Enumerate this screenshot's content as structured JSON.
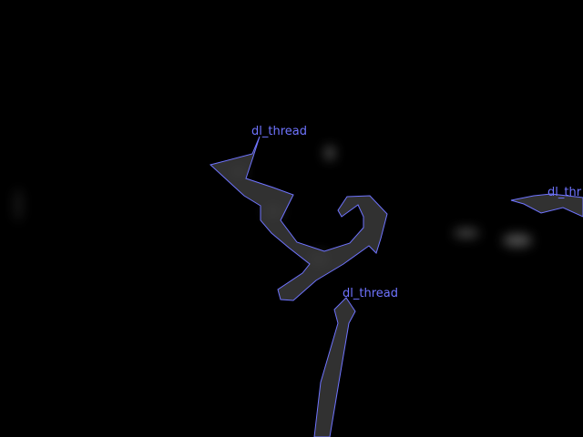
{
  "image": {
    "background_color": "#000000",
    "outline_color": "#6f74ff",
    "fill_color": "#3a3a3a",
    "glow_color": "#c8c8c8"
  },
  "annotations": [
    {
      "label": "dl_thread"
    },
    {
      "label": "dl_thread"
    },
    {
      "label": "dl_thr"
    }
  ]
}
